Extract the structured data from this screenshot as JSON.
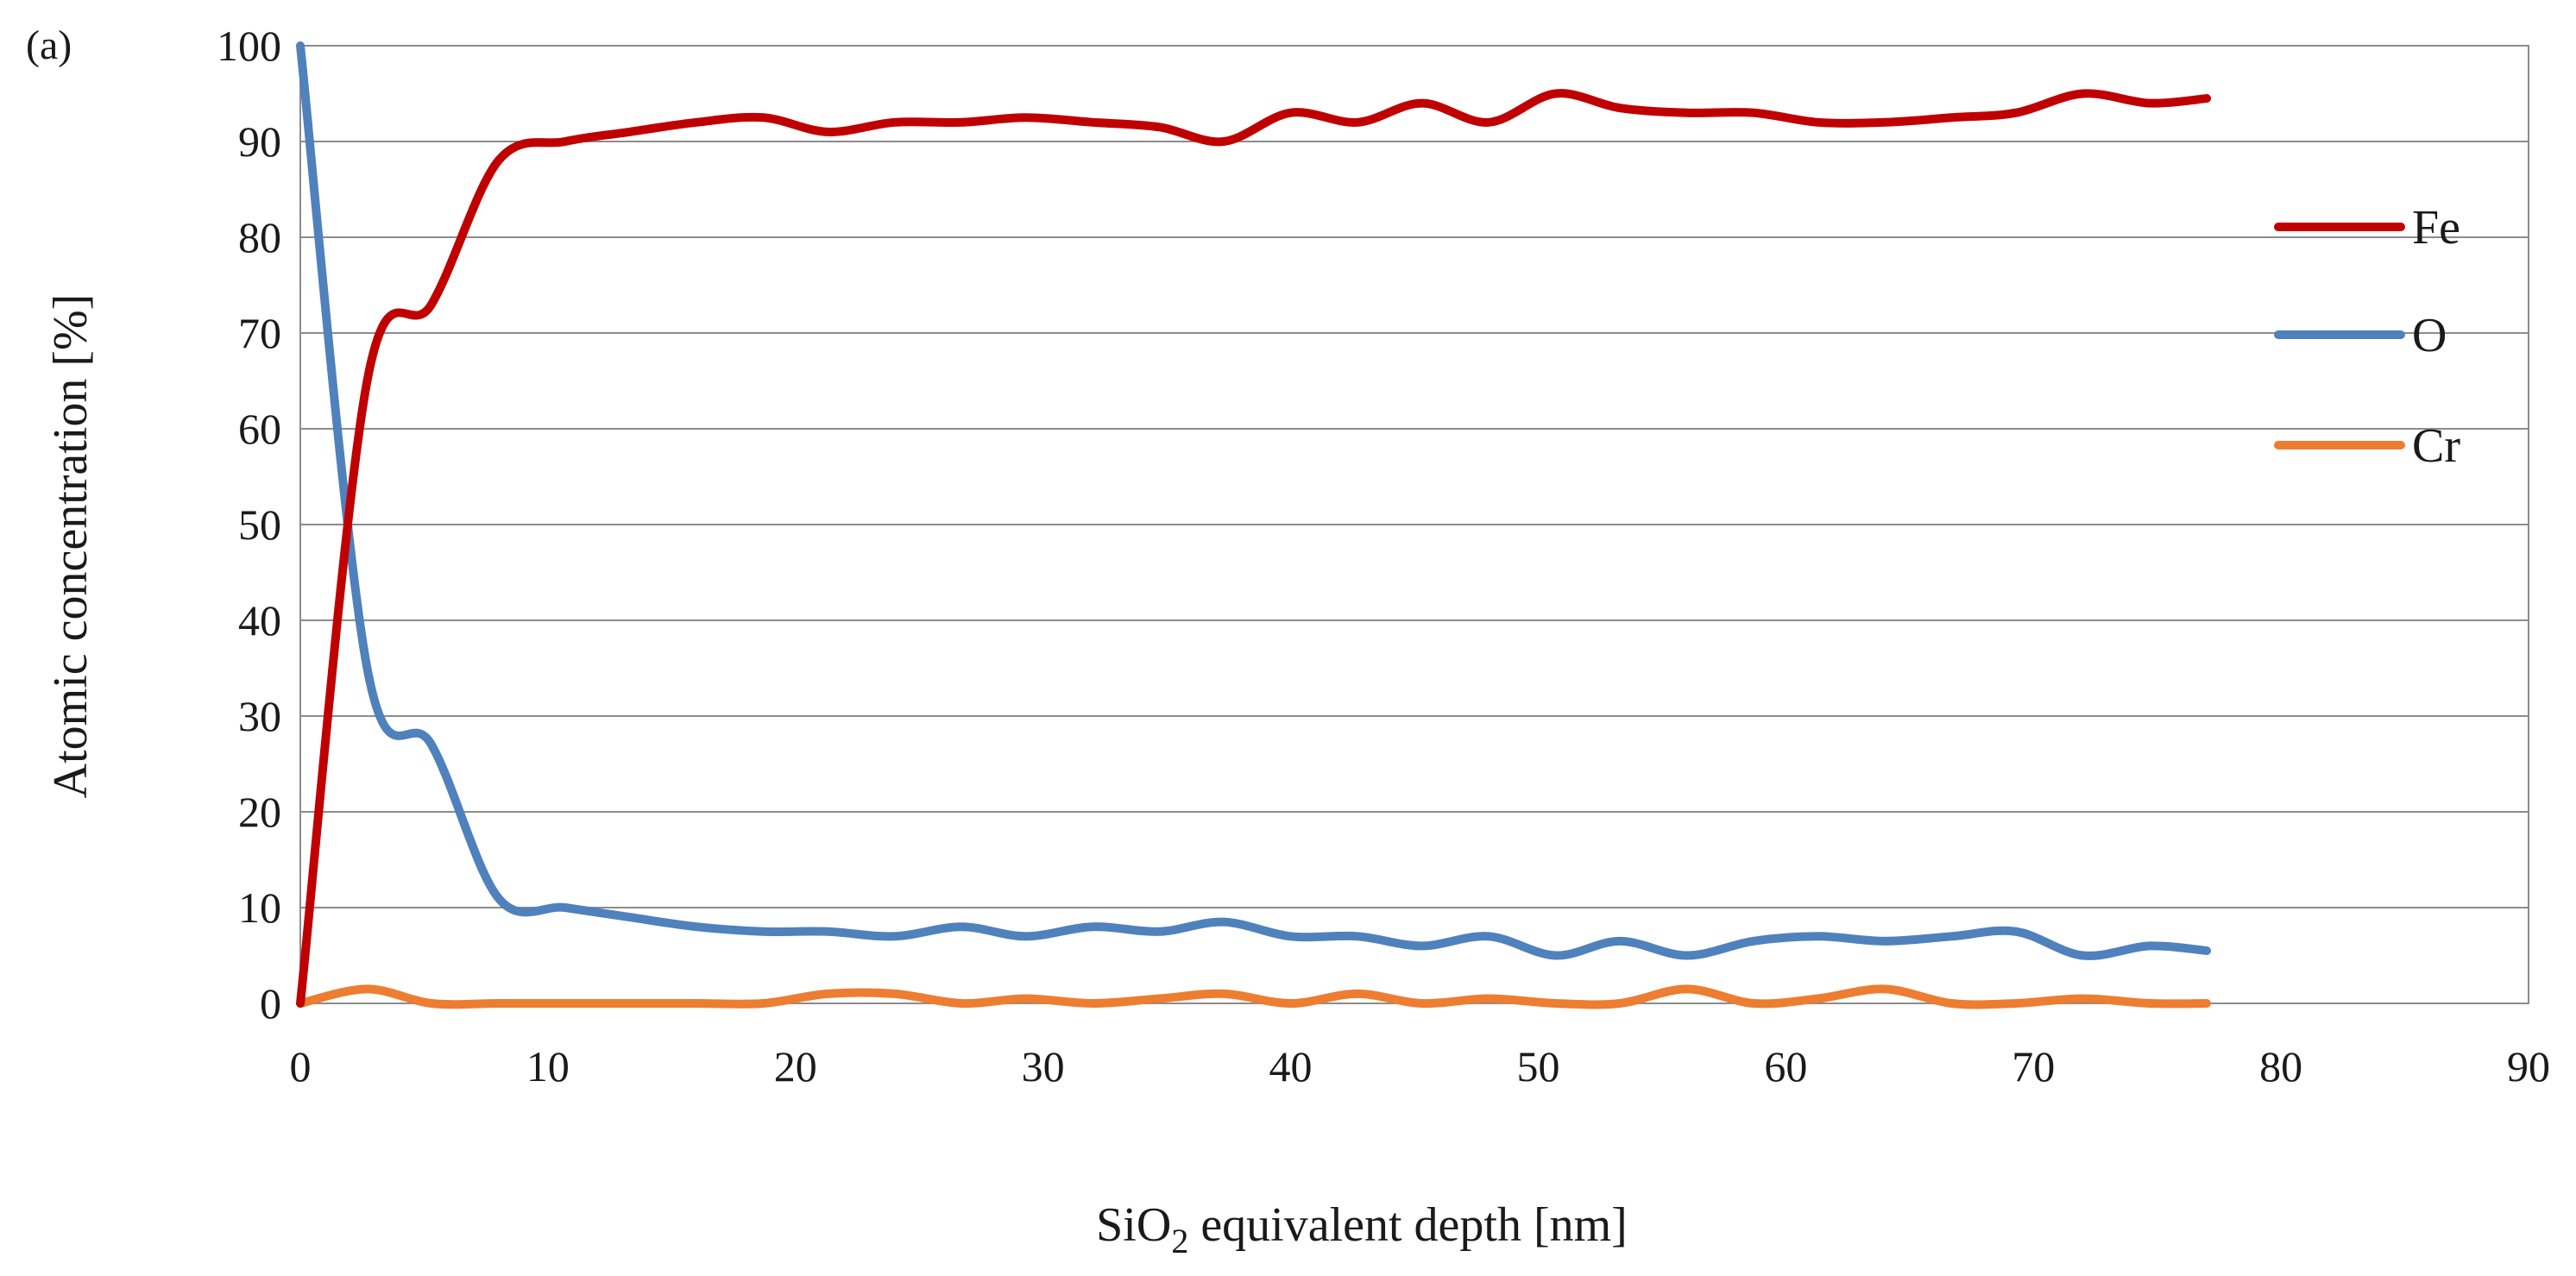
{
  "chart_data": {
    "type": "line",
    "panel_label": "(a)",
    "xlabel_prefix": "SiO",
    "xlabel_subscript": "2",
    "xlabel_suffix": " equivalent depth [nm]",
    "ylabel": "Atomic concentration [%]",
    "xlim": [
      0,
      90
    ],
    "ylim": [
      0,
      100
    ],
    "x_ticks": [
      0,
      10,
      20,
      30,
      40,
      50,
      60,
      70,
      80,
      90
    ],
    "y_ticks": [
      0,
      10,
      20,
      30,
      40,
      50,
      60,
      70,
      80,
      90,
      100
    ],
    "legend_position": "right",
    "x": [
      0,
      2.7,
      5.3,
      8,
      10.7,
      13.3,
      16,
      18.7,
      21.3,
      24,
      26.7,
      29.3,
      32,
      34.7,
      37.3,
      40,
      42.7,
      45.3,
      48,
      50.7,
      53.3,
      56,
      58.7,
      61.3,
      64,
      66.7,
      69.3,
      72,
      74.7,
      77
    ],
    "series": [
      {
        "name": "Fe",
        "color": "#c00000",
        "values": [
          0,
          65,
          73,
          88,
          90,
          91,
          92,
          92.5,
          91,
          92,
          92,
          92.5,
          92,
          91.5,
          90,
          93,
          92,
          94,
          92,
          95,
          93.5,
          93,
          93,
          92,
          92,
          92.5,
          93,
          95,
          94,
          94.5
        ]
      },
      {
        "name": "O",
        "color": "#4f81bd",
        "values": [
          100,
          35,
          27,
          11,
          10,
          9,
          8,
          7.5,
          7.5,
          7,
          8,
          7,
          8,
          7.5,
          8.5,
          7,
          7,
          6,
          7,
          5,
          6.5,
          5,
          6.5,
          7,
          6.5,
          7,
          7.5,
          5,
          6,
          5.5
        ]
      },
      {
        "name": "Cr",
        "color": "#ed7d31",
        "values": [
          0,
          1.5,
          0,
          0,
          0,
          0,
          0,
          0,
          1,
          1,
          0,
          0.5,
          0,
          0.5,
          1,
          0,
          1,
          0,
          0.5,
          0,
          0,
          1.5,
          0,
          0.5,
          1.5,
          0,
          0,
          0.5,
          0,
          0
        ]
      }
    ]
  }
}
